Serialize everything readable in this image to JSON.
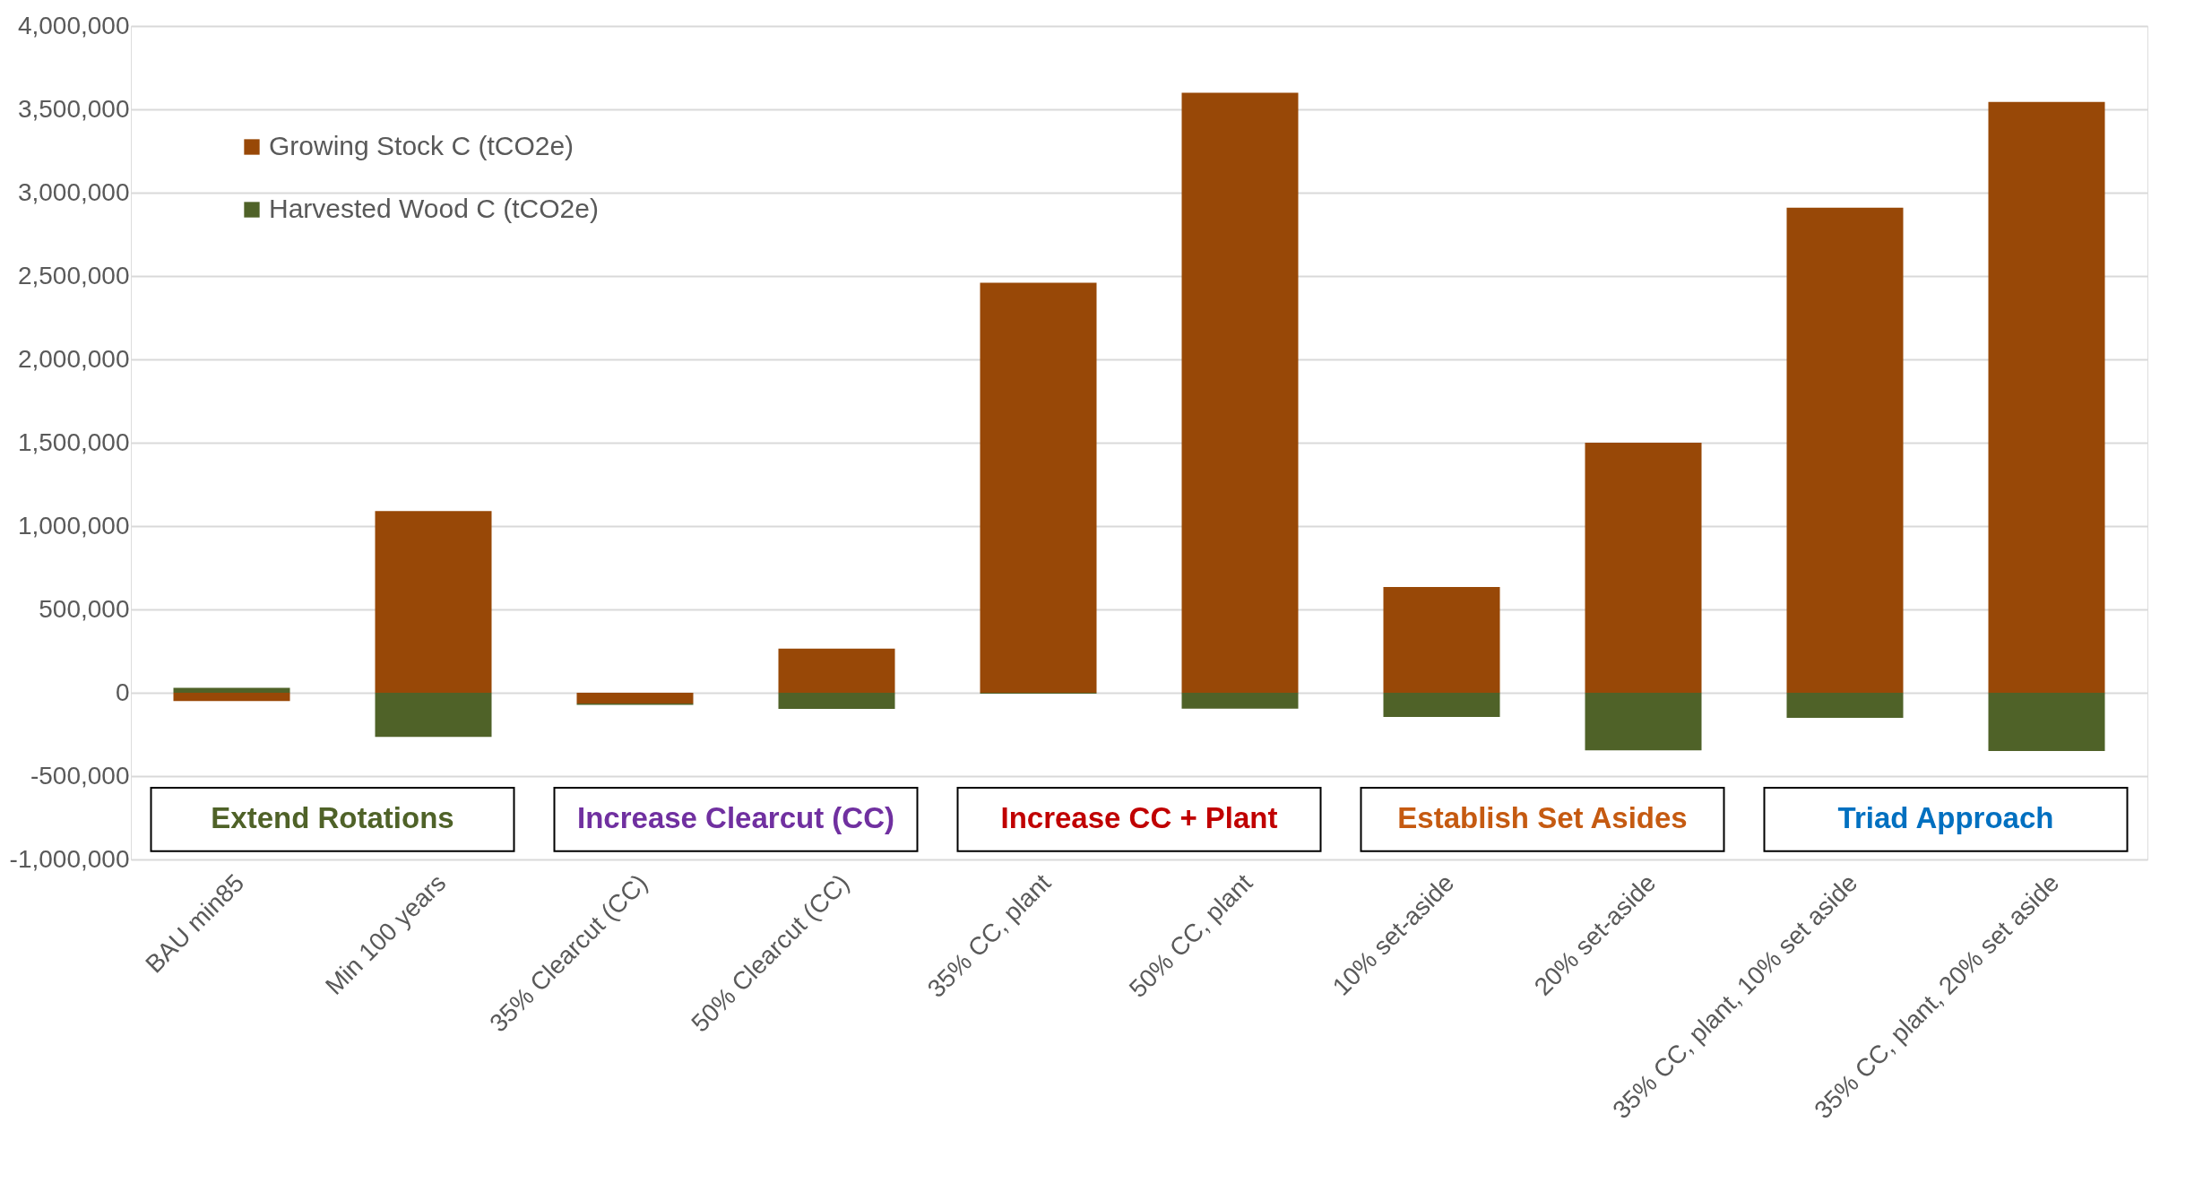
{
  "chart_data": {
    "type": "bar",
    "stacked": true,
    "categories": [
      "BAU min85",
      "Min 100 years",
      "35% Clearcut (CC)",
      "50% Clearcut (CC)",
      "35% CC, plant",
      "50% CC, plant",
      "10% set-aside",
      "20% set-aside",
      "35% CC, plant, 10% set aside",
      "35% CC, plant, 20% set aside"
    ],
    "series": [
      {
        "name": "Growing Stock C (tCO2e)",
        "color": "#984807",
        "values": [
          -50000,
          1090000,
          -65000,
          265000,
          2460000,
          3600000,
          635000,
          1500000,
          2910000,
          3545000
        ]
      },
      {
        "name": "Harvested Wood C (tCO2e)",
        "color": "#4f6228",
        "values": [
          30000,
          -265000,
          -8000,
          -97000,
          -5000,
          -95000,
          -145000,
          -345000,
          -150000,
          -350000
        ]
      }
    ],
    "ylim": [
      -1000000,
      4000000
    ],
    "yticks": [
      {
        "value": -1000000,
        "label": "-1,000,000"
      },
      {
        "value": -500000,
        "label": "-500,000"
      },
      0,
      {
        "value": 500000,
        "label": "500,000"
      },
      {
        "value": 1000000,
        "label": "1,000,000"
      },
      {
        "value": 1500000,
        "label": "1,500,000"
      },
      {
        "value": 2000000,
        "label": "2,000,000"
      },
      {
        "value": 2500000,
        "label": "2,500,000"
      },
      {
        "value": 3000000,
        "label": "3,000,000"
      },
      {
        "value": 3500000,
        "label": "3,500,000"
      },
      {
        "value": 4000000,
        "label": "4,000,000"
      }
    ],
    "grid": "y",
    "legend": "top left",
    "annotations": [
      "Extend Rotations",
      "Increase Clearcut (CC)",
      "Increase CC + Plant",
      "Establish Set Asides",
      "Triad Approach"
    ]
  }
}
